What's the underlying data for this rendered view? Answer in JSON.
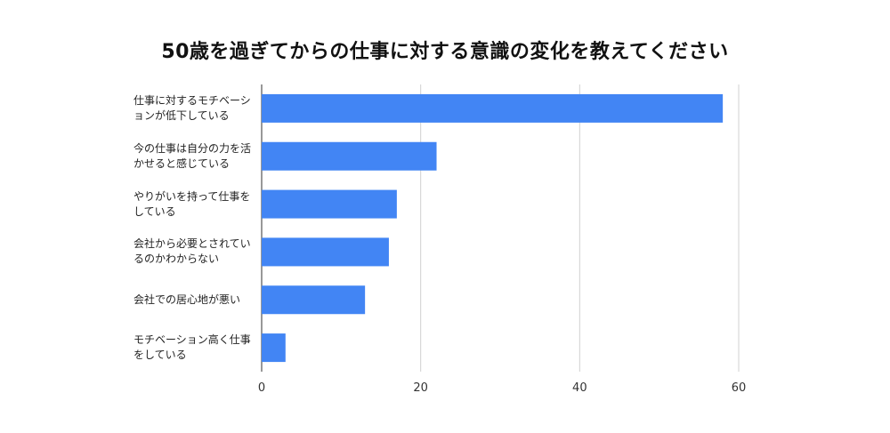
{
  "chart_data": {
    "type": "bar",
    "orientation": "horizontal",
    "title": "50歳を過ぎてからの仕事に対する意識の変化を教えてください",
    "xlabel": "",
    "ylabel": "",
    "xlim": [
      0,
      60
    ],
    "xticks": [
      "0",
      "20",
      "40",
      "60"
    ],
    "grid": true,
    "legend": "none",
    "bar_color": "#4285f4",
    "categories": [
      "仕事に対するモチベーションが低下している",
      "今の仕事は自分の力を活かせると感じている",
      "やりがいを持って仕事をしている",
      "会社から必要とされているのかわからない",
      "会社での居心地が悪い",
      "モチベーション高く仕事をしている"
    ],
    "values": [
      58,
      22,
      17,
      16,
      13,
      3
    ]
  }
}
